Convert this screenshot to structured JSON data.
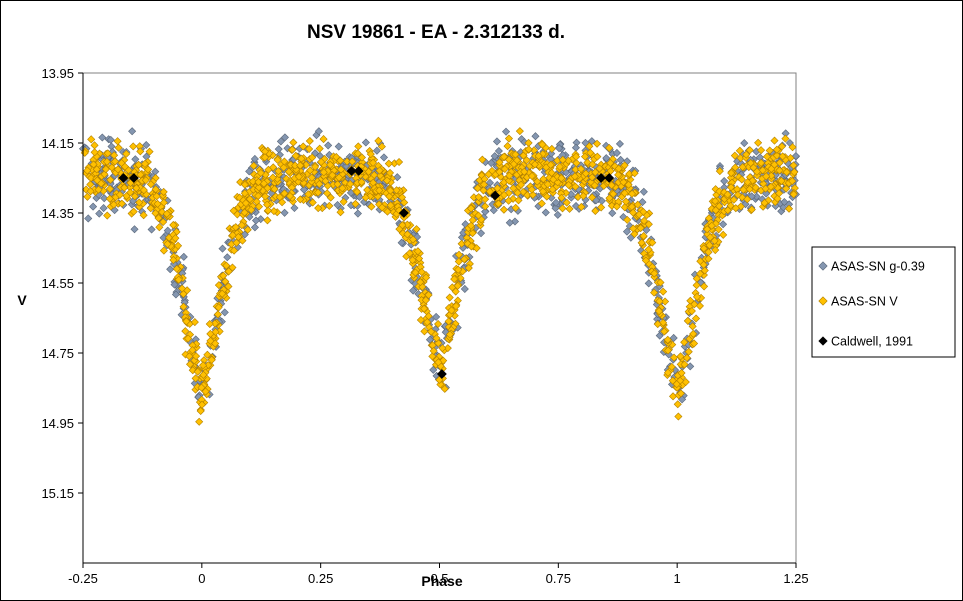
{
  "chart_data": {
    "type": "scatter",
    "title": "NSV 19861 - EA - 2.312133 d.",
    "xlabel": "Phase",
    "ylabel": "V",
    "xlim": [
      -0.25,
      1.25
    ],
    "ylim": [
      15.35,
      13.95
    ],
    "y_inverted": true,
    "x_ticks": [
      "-0.25",
      "0",
      "0.25",
      "0.5",
      "0.75",
      "1",
      "1.25"
    ],
    "x_tick_values": [
      -0.25,
      0,
      0.25,
      0.5,
      0.75,
      1,
      1.25
    ],
    "y_ticks": [
      "13.95",
      "14.15",
      "14.35",
      "14.55",
      "14.75",
      "14.95",
      "15.15"
    ],
    "y_tick_values": [
      13.95,
      14.15,
      14.35,
      14.55,
      14.75,
      14.95,
      15.15
    ],
    "grid": false,
    "legend_position": "right",
    "model": {
      "out_of_eclipse_max": 14.24,
      "primary_minimum": 14.86,
      "primary_minimum_phase": 0.0,
      "secondary_minimum": 14.78,
      "secondary_minimum_phase": 0.5
    },
    "series": [
      {
        "name": "ASAS-SN g-0.39",
        "marker": "diamond",
        "color": "#8496b0",
        "edge": "#5a6778",
        "scatter": 0.05,
        "count": 1000,
        "seed": 11
      },
      {
        "name": "ASAS-SN V",
        "marker": "diamond",
        "color": "#ffc000",
        "edge": "#b07f00",
        "scatter": 0.045,
        "count": 1500,
        "seed": 23
      },
      {
        "name": "Caldwell, 1991",
        "marker": "diamond",
        "color": "#000000",
        "edge": "#000000",
        "points": [
          {
            "x": -0.165,
            "y": 14.25
          },
          {
            "x": -0.143,
            "y": 14.25
          },
          {
            "x": 0.315,
            "y": 14.23
          },
          {
            "x": 0.33,
            "y": 14.23
          },
          {
            "x": 0.425,
            "y": 14.35
          },
          {
            "x": 0.505,
            "y": 14.81
          },
          {
            "x": 0.617,
            "y": 14.3
          },
          {
            "x": 0.84,
            "y": 14.25
          },
          {
            "x": 0.857,
            "y": 14.25
          }
        ]
      }
    ]
  }
}
